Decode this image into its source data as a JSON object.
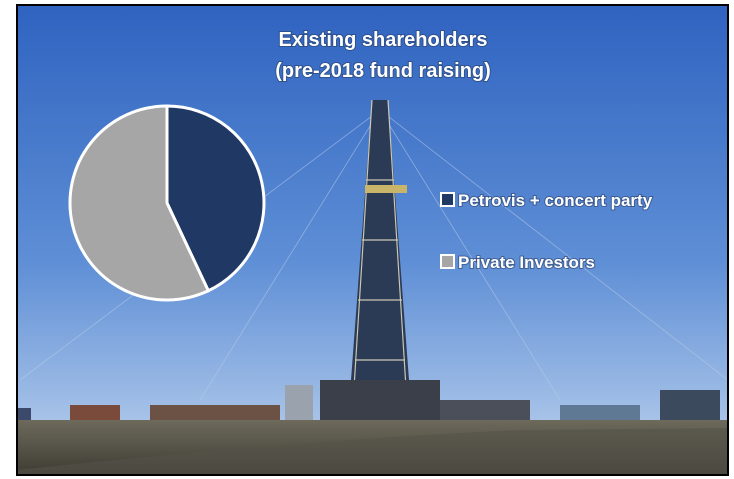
{
  "chart_data": {
    "type": "pie",
    "title": "Existing shareholders",
    "subtitle": "(pre-2018 fund raising)",
    "categories": [
      "Petrovis + concert party",
      "Private Investors"
    ],
    "values": [
      43,
      57
    ],
    "colors": [
      "#1f3864",
      "#a6a6a6"
    ],
    "legend": "right"
  }
}
